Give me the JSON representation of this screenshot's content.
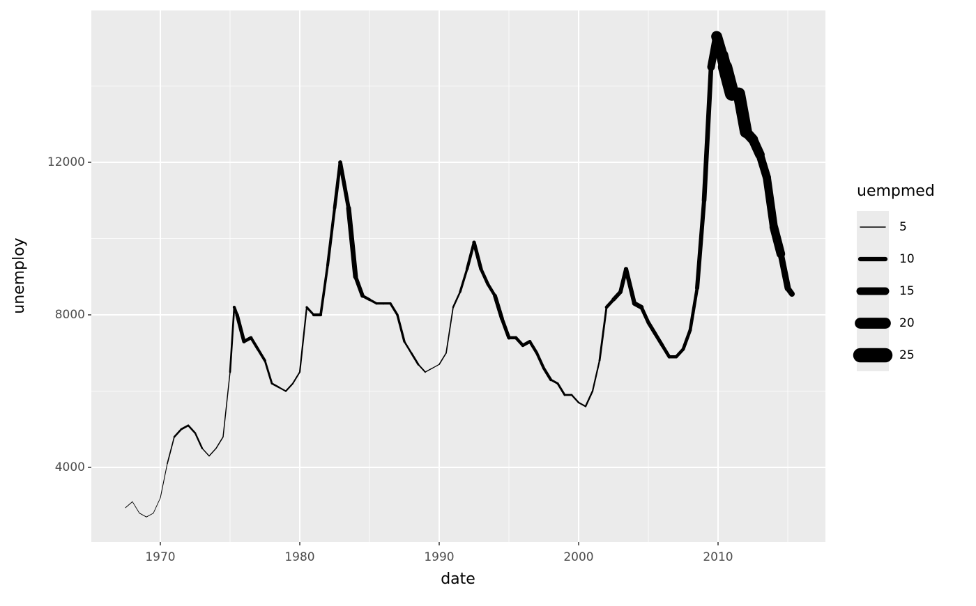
{
  "chart_data": {
    "type": "line",
    "x_label": "date",
    "y_label": "unemploy",
    "xlim": [
      1965.05,
      2017.7
    ],
    "ylim": [
      2046,
      15982
    ],
    "xticks": [
      1970,
      1980,
      1990,
      2000,
      2010
    ],
    "yticks": [
      4000,
      8000,
      12000
    ],
    "grid": true,
    "x": [
      1967.5,
      1968.0,
      1968.5,
      1969.0,
      1969.5,
      1970.0,
      1970.5,
      1971.0,
      1971.5,
      1972.0,
      1972.5,
      1973.0,
      1973.5,
      1974.0,
      1974.5,
      1975.0,
      1975.3,
      1975.5,
      1976.0,
      1976.5,
      1977.0,
      1977.5,
      1978.0,
      1978.5,
      1979.0,
      1979.5,
      1980.0,
      1980.5,
      1981.0,
      1981.5,
      1982.0,
      1982.5,
      1982.9,
      1983.5,
      1984.0,
      1984.5,
      1985.0,
      1985.5,
      1986.0,
      1986.5,
      1987.0,
      1987.5,
      1988.0,
      1988.5,
      1989.0,
      1989.5,
      1990.0,
      1990.5,
      1991.0,
      1991.5,
      1992.0,
      1992.5,
      1993.0,
      1993.5,
      1994.0,
      1994.5,
      1995.0,
      1995.5,
      1996.0,
      1996.5,
      1997.0,
      1997.5,
      1998.0,
      1998.5,
      1999.0,
      1999.5,
      2000.0,
      2000.5,
      2001.0,
      2001.5,
      2002.0,
      2002.5,
      2003.0,
      2003.4,
      2004.0,
      2004.5,
      2005.0,
      2005.5,
      2006.0,
      2006.5,
      2007.0,
      2007.5,
      2008.0,
      2008.5,
      2009.0,
      2009.5,
      2009.9,
      2010.3,
      2010.5,
      2011.0,
      2011.5,
      2012.0,
      2012.5,
      2013.0,
      2013.5,
      2014.0,
      2014.5,
      2015.0,
      2015.3
    ],
    "series": [
      {
        "color": "#000000",
        "values": [
          2944,
          3100,
          2800,
          2700,
          2800,
          3200,
          4100,
          4800,
          5000,
          5100,
          4900,
          4500,
          4300,
          4500,
          4800,
          6500,
          8200,
          8000,
          7300,
          7400,
          7100,
          6800,
          6200,
          6100,
          6000,
          6200,
          6500,
          8200,
          8000,
          8000,
          9300,
          10800,
          12000,
          10800,
          9000,
          8500,
          8400,
          8300,
          8300,
          8300,
          8000,
          7300,
          7000,
          6700,
          6500,
          6600,
          6700,
          7000,
          8200,
          8600,
          9200,
          9900,
          9200,
          8800,
          8500,
          7900,
          7400,
          7400,
          7200,
          7300,
          7000,
          6600,
          6300,
          6200,
          5900,
          5900,
          5700,
          5600,
          6000,
          6800,
          8200,
          8400,
          8600,
          9200,
          8300,
          8200,
          7800,
          7500,
          7200,
          6900,
          6900,
          7100,
          7600,
          8700,
          11000,
          14500,
          15300,
          14800,
          14500,
          13800,
          13800,
          12800,
          12600,
          12200,
          11600,
          10300,
          9600,
          8700,
          8549
        ],
        "sizes": [
          4.5,
          4.4,
          4.5,
          4.4,
          4.4,
          4.6,
          5.2,
          6.2,
          6.4,
          6.2,
          6.0,
          5.0,
          5.0,
          5.1,
          5.0,
          6.3,
          8.0,
          9.0,
          8.5,
          7.8,
          7.5,
          6.5,
          6.2,
          5.7,
          5.8,
          5.6,
          5.8,
          6.8,
          8.0,
          7.3,
          7.8,
          8.5,
          9.5,
          10.8,
          9.5,
          7.8,
          7.0,
          6.9,
          6.9,
          7.0,
          7.0,
          6.2,
          6.5,
          5.6,
          5.0,
          4.8,
          5.2,
          5.3,
          6.1,
          7.0,
          8.0,
          9.0,
          8.4,
          8.2,
          9.5,
          9.0,
          8.2,
          8.2,
          8.5,
          8.0,
          7.8,
          7.8,
          6.7,
          6.7,
          6.4,
          6.0,
          5.8,
          6.0,
          5.8,
          6.5,
          8.4,
          9.5,
          9.6,
          10.0,
          10.5,
          9.0,
          9.2,
          9.0,
          8.6,
          8.2,
          8.3,
          8.5,
          8.4,
          9.8,
          10.5,
          15.0,
          20.0,
          22.0,
          25.0,
          21.5,
          22.0,
          19.0,
          18.0,
          16.0,
          15.8,
          16.5,
          13.0,
          12.0,
          11.7
        ]
      }
    ],
    "size_legend": {
      "title": "uempmed",
      "values": [
        5,
        10,
        15,
        20,
        25
      ]
    }
  }
}
